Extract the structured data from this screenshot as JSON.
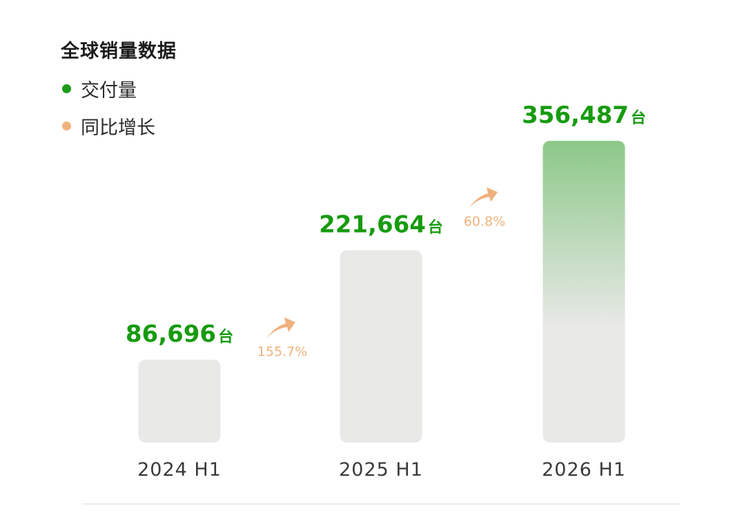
{
  "title": "全球销量数据",
  "legend": [
    {
      "label": "交付量",
      "color": "#1a9c1a"
    },
    {
      "label": "同比增长",
      "color": "#f0b27a"
    }
  ],
  "chart_data": {
    "type": "bar",
    "title": "全球销量数据",
    "categories": [
      "2024 H1",
      "2025 H1",
      "2026 H1"
    ],
    "series": [
      {
        "name": "交付量",
        "values": [
          86696,
          221664,
          356487
        ]
      }
    ],
    "value_labels": [
      "86,696",
      "221,664",
      "356,487"
    ],
    "unit": "台",
    "growth": [
      {
        "from": "2024 H1",
        "to": "2025 H1",
        "label": "155.7%"
      },
      {
        "from": "2025 H1",
        "to": "2026 H1",
        "label": "60.8%"
      }
    ],
    "colors": {
      "bar": "#e9e9e8",
      "highlight_top": "#8cc888",
      "value_text": "#179b10",
      "growth": "#efb27c",
      "category_text": "#3a3a3a"
    },
    "grid": false
  }
}
